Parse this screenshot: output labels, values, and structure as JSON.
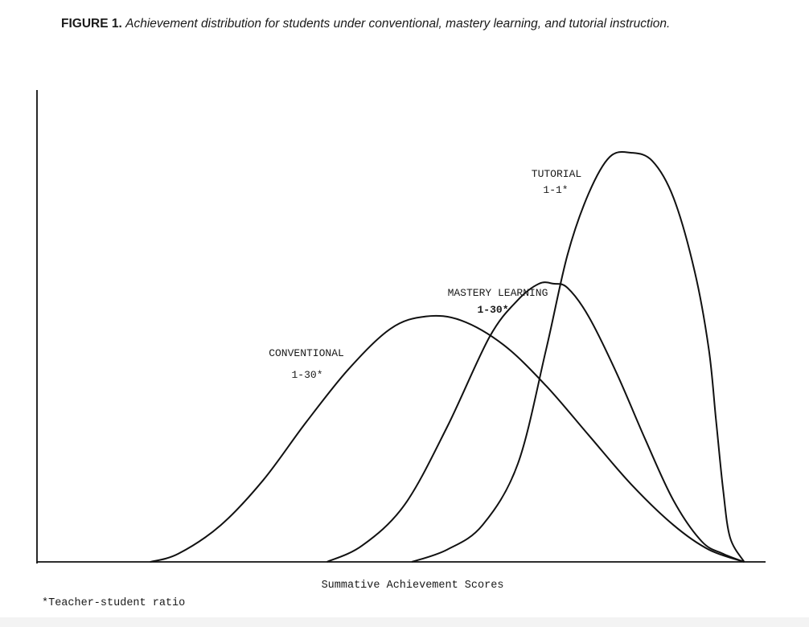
{
  "figure": {
    "label": "FIGURE 1.",
    "caption": "Achievement distribution for students under conventional, mastery learning, and tutorial instruction."
  },
  "footnote": "*Teacher-student ratio",
  "chart_data": {
    "type": "line",
    "xlabel": "Summative Achievement Scores",
    "ylabel": "",
    "xlim": [
      0,
      100
    ],
    "ylim": [
      0,
      100
    ],
    "grid": false,
    "legend": "none (curves labelled directly)",
    "series": [
      {
        "name": "CONVENTIONAL",
        "ratio": "1-30*",
        "color": "#111111",
        "x": [
          16,
          20,
          26,
          32,
          38,
          44,
          50,
          55,
          60,
          66,
          72,
          78,
          84,
          90,
          95,
          100
        ],
        "y": [
          0,
          2,
          9,
          20,
          34,
          47,
          57,
          60,
          59,
          53,
          43,
          31,
          19,
          9,
          3,
          0
        ]
      },
      {
        "name": "MASTERY LEARNING",
        "ratio": "1-30*",
        "color": "#111111",
        "x": [
          41,
          46,
          52,
          58,
          64,
          68,
          71,
          73,
          75,
          78,
          82,
          86,
          90,
          94,
          97,
          100
        ],
        "y": [
          0,
          4,
          14,
          33,
          55,
          64,
          68,
          68,
          67,
          60,
          46,
          30,
          15,
          5,
          2,
          0
        ]
      },
      {
        "name": "TUTORIAL",
        "ratio": "1-1*",
        "color": "#111111",
        "x": [
          53,
          58,
          63,
          68,
          72,
          75,
          78,
          81,
          84,
          87,
          90,
          93,
          95,
          96,
          97,
          98,
          100
        ],
        "y": [
          0,
          3,
          9,
          24,
          52,
          75,
          90,
          99,
          100,
          98,
          89,
          71,
          52,
          35,
          18,
          6,
          0
        ]
      }
    ]
  }
}
